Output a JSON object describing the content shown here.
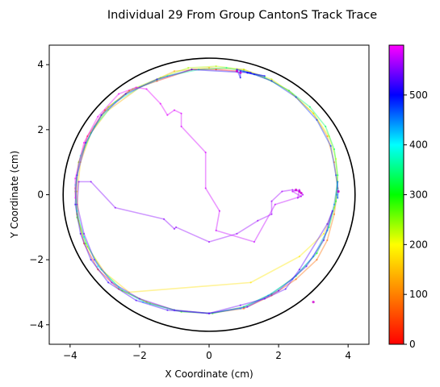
{
  "chart_data": {
    "type": "scatter",
    "title": "Individual 29 From Group CantonS Track Trace",
    "xlabel": "X Coordinate (cm)",
    "ylabel": "Y Coordinate (cm)",
    "xlim": [
      -4.6,
      4.6
    ],
    "ylim": [
      -4.6,
      4.6
    ],
    "xticks": [
      -4,
      -2,
      0,
      2,
      4
    ],
    "yticks": [
      -4,
      -2,
      0,
      2,
      4
    ],
    "grid": false,
    "arena_circle": {
      "center": [
        0,
        0
      ],
      "radius": 4.2,
      "color": "#000000"
    },
    "colorbar": {
      "min": 0,
      "max": 600,
      "ticks": [
        0,
        100,
        200,
        300,
        400,
        500
      ],
      "colormap": "gist_rainbow_r",
      "stops": [
        "#ff0000",
        "#ff8000",
        "#ffff00",
        "#00ff00",
        "#00ffff",
        "#0000ff",
        "#ff00ff"
      ]
    },
    "series": [
      {
        "t_start": 0,
        "t_end": 100,
        "points": [
          [
            0.8,
            3.8
          ],
          [
            0.2,
            3.85
          ],
          [
            -0.5,
            3.85
          ],
          [
            -1.5,
            3.5
          ],
          [
            -2.3,
            3.2
          ],
          [
            -3.0,
            2.6
          ],
          [
            -3.5,
            1.8
          ],
          [
            -3.75,
            1.0
          ],
          [
            -3.85,
            0.2
          ],
          [
            -3.8,
            -0.6
          ],
          [
            -3.6,
            -1.5
          ],
          [
            -3.2,
            -2.3
          ],
          [
            -2.6,
            -2.9
          ],
          [
            -1.8,
            -3.3
          ],
          [
            -1.0,
            -3.55
          ],
          [
            0.0,
            -3.65
          ],
          [
            1.0,
            -3.5
          ],
          [
            1.8,
            -3.1
          ],
          [
            2.5,
            -2.6
          ],
          [
            3.1,
            -2.0
          ],
          [
            3.4,
            -1.4
          ],
          [
            3.6,
            -0.6
          ],
          [
            3.7,
            0.2
          ]
        ]
      },
      {
        "t_start": 100,
        "t_end": 200,
        "points": [
          [
            3.7,
            0.2
          ],
          [
            3.6,
            1.0
          ],
          [
            3.4,
            1.8
          ],
          [
            3.0,
            2.5
          ],
          [
            2.3,
            3.2
          ],
          [
            1.8,
            3.5
          ],
          [
            1.0,
            3.85
          ],
          [
            0.0,
            3.9
          ],
          [
            -1.0,
            3.8
          ],
          [
            -2.0,
            3.3
          ],
          [
            -2.9,
            2.6
          ],
          [
            -3.4,
            1.9
          ],
          [
            -3.7,
            1.0
          ],
          [
            -3.8,
            0.1
          ],
          [
            -3.75,
            -0.8
          ],
          [
            -3.5,
            -1.6
          ],
          [
            -3.0,
            -2.4
          ],
          [
            -2.3,
            -3.0
          ],
          [
            1.2,
            -2.7
          ],
          [
            2.6,
            -1.9
          ],
          [
            3.3,
            -1.2
          ],
          [
            3.6,
            -0.4
          ],
          [
            3.7,
            0.4
          ]
        ]
      },
      {
        "t_start": 200,
        "t_end": 300,
        "points": [
          [
            3.7,
            0.4
          ],
          [
            3.65,
            1.1
          ],
          [
            3.45,
            1.8
          ],
          [
            3.0,
            2.5
          ],
          [
            2.4,
            3.1
          ],
          [
            1.8,
            3.55
          ],
          [
            1.0,
            3.85
          ],
          [
            0.2,
            3.95
          ],
          [
            -0.6,
            3.9
          ],
          [
            -1.4,
            3.6
          ],
          [
            -2.2,
            3.25
          ],
          [
            -2.9,
            2.7
          ],
          [
            -3.4,
            1.9
          ],
          [
            -3.75,
            1.0
          ],
          [
            -3.85,
            0.1
          ],
          [
            -3.8,
            -0.7
          ],
          [
            -3.55,
            -1.5
          ],
          [
            -3.1,
            -2.3
          ],
          [
            -2.5,
            -2.95
          ],
          [
            -1.7,
            -3.35
          ],
          [
            -0.8,
            -3.6
          ],
          [
            0.1,
            -3.65
          ],
          [
            1.0,
            -3.45
          ]
        ]
      },
      {
        "t_start": 300,
        "t_end": 400,
        "points": [
          [
            1.0,
            -3.45
          ],
          [
            1.8,
            -3.05
          ],
          [
            2.5,
            -2.5
          ],
          [
            3.1,
            -1.8
          ],
          [
            3.45,
            -1.0
          ],
          [
            3.65,
            -0.2
          ],
          [
            3.7,
            0.6
          ],
          [
            3.6,
            1.4
          ],
          [
            3.35,
            2.1
          ],
          [
            2.9,
            2.7
          ],
          [
            2.3,
            3.2
          ],
          [
            1.6,
            3.6
          ],
          [
            1.0,
            3.8
          ],
          [
            0.5,
            3.9
          ],
          [
            -0.3,
            3.85
          ],
          [
            -1.2,
            3.65
          ],
          [
            -2.0,
            3.3
          ],
          [
            -2.7,
            2.85
          ],
          [
            -3.3,
            2.1
          ],
          [
            -3.7,
            1.2
          ],
          [
            -3.85,
            0.3
          ],
          [
            -3.8,
            -0.5
          ],
          [
            -3.6,
            -1.3
          ]
        ]
      },
      {
        "t_start": 400,
        "t_end": 500,
        "points": [
          [
            -3.6,
            -1.3
          ],
          [
            -3.2,
            -2.2
          ],
          [
            -2.6,
            -2.85
          ],
          [
            -1.9,
            -3.3
          ],
          [
            -1.0,
            -3.55
          ],
          [
            0.0,
            -3.65
          ],
          [
            0.9,
            -3.5
          ],
          [
            1.7,
            -3.1
          ],
          [
            2.4,
            -2.6
          ],
          [
            3.0,
            -1.9
          ],
          [
            3.4,
            -1.1
          ],
          [
            3.6,
            -0.3
          ],
          [
            3.7,
            0.4
          ],
          [
            3.68,
            0.0
          ],
          [
            3.7,
            -0.1
          ],
          [
            3.72,
            0.1
          ],
          [
            3.65,
            0.6
          ],
          [
            3.5,
            1.5
          ],
          [
            3.1,
            2.3
          ],
          [
            2.5,
            3.0
          ],
          [
            1.8,
            3.5
          ],
          [
            1.3,
            3.7
          ],
          [
            1.1,
            3.75
          ]
        ]
      },
      {
        "t_start": 500,
        "t_end": 600,
        "points": [
          [
            1.1,
            3.75
          ],
          [
            1.6,
            3.65
          ],
          [
            0.9,
            3.8
          ],
          [
            0.9,
            3.6
          ],
          [
            0.8,
            3.85
          ],
          [
            1.2,
            3.75
          ],
          [
            -0.5,
            3.85
          ],
          [
            -1.5,
            3.55
          ],
          [
            -2.4,
            3.1
          ],
          [
            -3.1,
            2.45
          ],
          [
            -3.55,
            1.6
          ],
          [
            -3.8,
            0.6
          ],
          [
            -3.85,
            -0.3
          ],
          [
            -3.7,
            -1.2
          ],
          [
            -3.4,
            -2.0
          ],
          [
            -2.9,
            -2.7
          ],
          [
            -2.1,
            -3.25
          ],
          [
            -1.2,
            -3.55
          ],
          [
            0.0,
            -3.65
          ],
          [
            1.1,
            -3.45
          ],
          [
            2.0,
            -2.95
          ],
          [
            2.8,
            -2.2
          ],
          [
            3.3,
            -1.4
          ],
          [
            3.55,
            -0.5
          ],
          [
            3.4,
            -0.9
          ],
          [
            2.6,
            -2.3
          ],
          [
            2.2,
            -2.9
          ],
          [
            1.6,
            -3.2
          ],
          [
            0.9,
            -3.4
          ],
          [
            0.0,
            -3.65
          ],
          [
            -1.0,
            -3.55
          ],
          [
            -2.0,
            -3.2
          ],
          [
            -2.8,
            -2.7
          ],
          [
            -3.3,
            -2.0
          ],
          [
            -3.6,
            -1.2
          ],
          [
            -3.8,
            -0.3
          ],
          [
            -3.75,
            0.4
          ],
          [
            -3.4,
            0.4
          ],
          [
            -2.7,
            -0.4
          ],
          [
            -1.3,
            -0.75
          ],
          [
            -1.0,
            -1.05
          ],
          [
            -0.95,
            -1.0
          ],
          [
            0.0,
            -1.45
          ],
          [
            0.8,
            -1.2
          ],
          [
            1.4,
            -0.8
          ],
          [
            1.8,
            -0.6
          ],
          [
            1.8,
            -0.2
          ],
          [
            2.1,
            0.1
          ],
          [
            2.4,
            0.15
          ],
          [
            2.6,
            0.1
          ],
          [
            2.7,
            0.0
          ],
          [
            2.55,
            -0.1
          ],
          [
            2.6,
            0.15
          ],
          [
            2.4,
            0.1
          ],
          [
            2.65,
            -0.05
          ],
          [
            1.9,
            -0.3
          ],
          [
            1.3,
            -1.45
          ],
          [
            0.2,
            -1.1
          ],
          [
            0.3,
            -0.5
          ],
          [
            -0.1,
            0.2
          ],
          [
            -0.1,
            1.3
          ],
          [
            -0.8,
            2.1
          ],
          [
            -0.8,
            2.5
          ],
          [
            -1.0,
            2.6
          ],
          [
            -1.2,
            2.45
          ],
          [
            -1.4,
            2.8
          ],
          [
            -1.8,
            3.25
          ],
          [
            -2.1,
            3.3
          ],
          [
            -2.6,
            3.1
          ],
          [
            -3.2,
            2.4
          ],
          [
            -3.6,
            1.6
          ],
          [
            -3.85,
            0.5
          ],
          [
            -3.85,
            -0.1
          ]
        ]
      }
    ],
    "markers": [
      [
        3.72,
        0.1
      ],
      [
        0.8,
        3.8
      ],
      [
        0.9,
        3.75
      ],
      [
        2.6,
        0.1
      ],
      [
        2.5,
        0.15
      ],
      [
        2.65,
        0.05
      ],
      [
        3.0,
        -3.3
      ]
    ]
  }
}
